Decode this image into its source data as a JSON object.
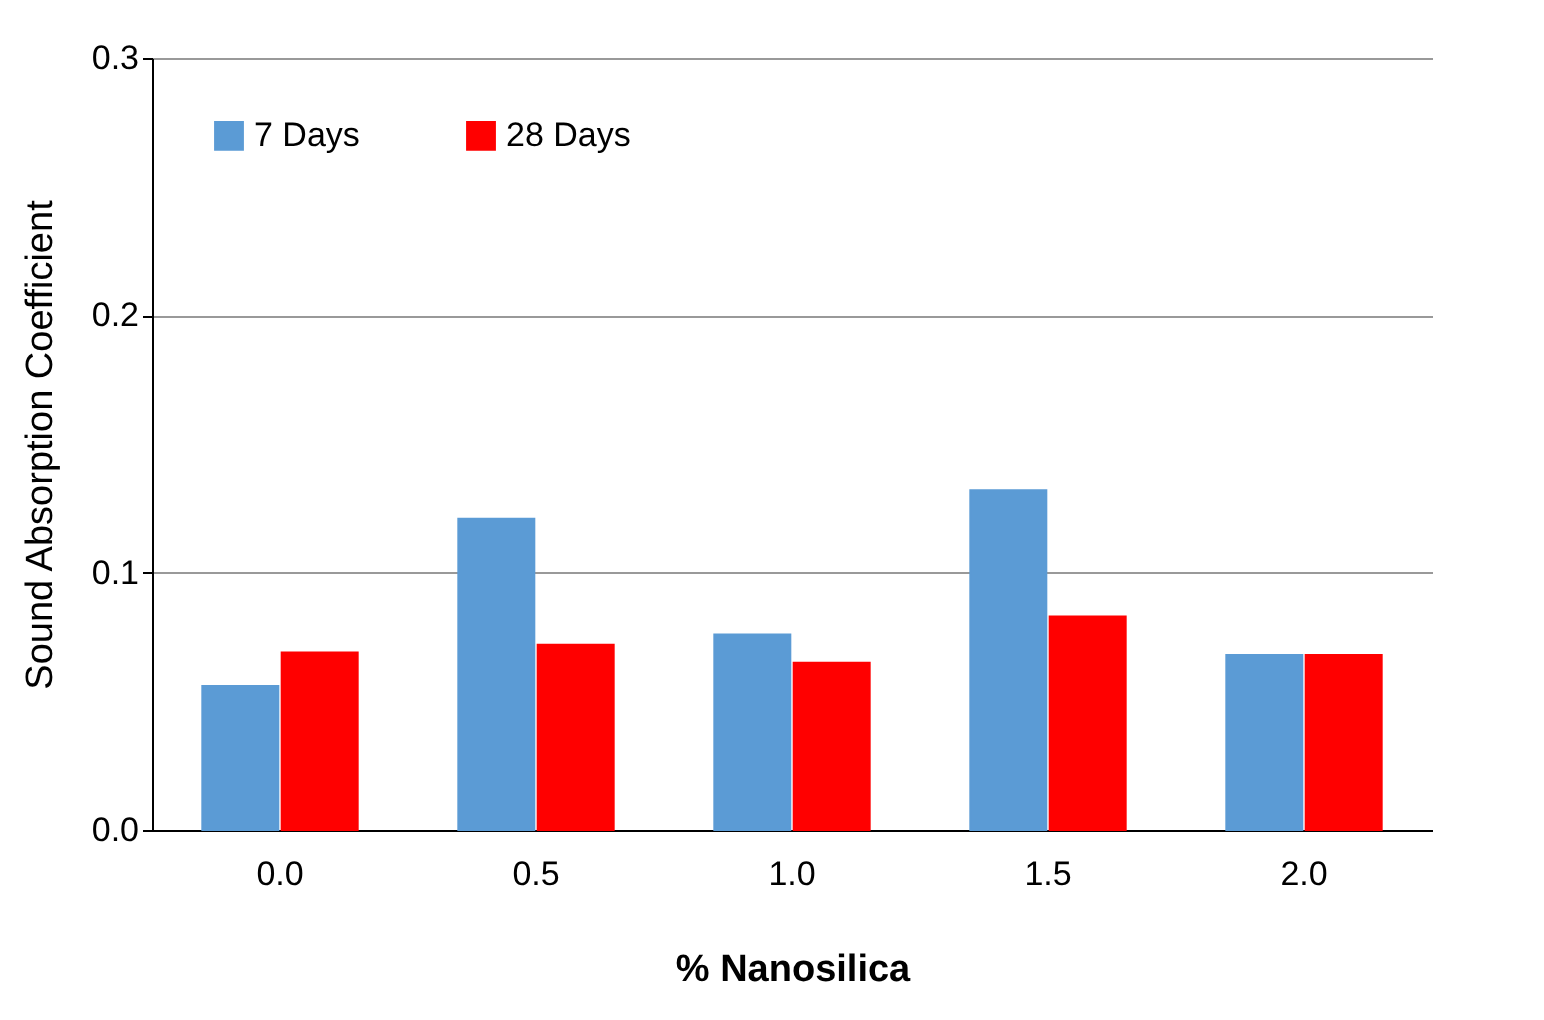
{
  "chart_data": {
    "type": "bar",
    "xlabel": "% Nanosilica",
    "ylabel": "Sound Absorption Coefficient",
    "categories": [
      "0.0",
      "0.5",
      "1.0",
      "1.5",
      "2.0"
    ],
    "series": [
      {
        "name": "7 Days",
        "color": "#5b9bd5",
        "values": [
          0.056,
          0.121,
          0.076,
          0.132,
          0.068
        ]
      },
      {
        "name": "28 Days",
        "color": "#ff0000",
        "values": [
          0.069,
          0.072,
          0.065,
          0.083,
          0.068
        ]
      }
    ],
    "ylim": [
      0,
      0.3
    ],
    "yticks": [
      {
        "value": 0,
        "label": "0.0"
      },
      {
        "value": 0.1,
        "label": "0.1"
      },
      {
        "value": 0.2,
        "label": "0.2"
      },
      {
        "value": 0.3,
        "label": "0.3"
      }
    ],
    "grid": "y",
    "legend": "top left"
  }
}
